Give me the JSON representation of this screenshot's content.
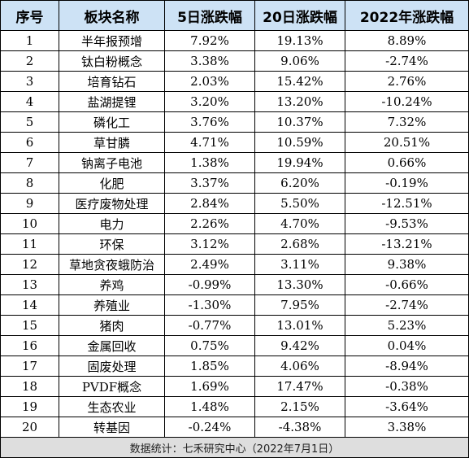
{
  "headers": [
    "序号",
    "板块名称",
    "5日涨跌幅",
    "20日涨跌幅",
    "2022年涨跌幅"
  ],
  "rows": [
    [
      "1",
      "半年报预增",
      "7.92%",
      "19.13%",
      "8.89%"
    ],
    [
      "2",
      "钛白粉概念",
      "3.38%",
      "9.06%",
      "-2.74%"
    ],
    [
      "3",
      "培育钻石",
      "2.03%",
      "15.42%",
      "2.76%"
    ],
    [
      "4",
      "盐湖提锂",
      "3.20%",
      "13.20%",
      "-10.24%"
    ],
    [
      "5",
      "磷化工",
      "3.76%",
      "10.37%",
      "7.32%"
    ],
    [
      "6",
      "草甘膦",
      "4.71%",
      "10.59%",
      "20.51%"
    ],
    [
      "7",
      "钠离子电池",
      "1.38%",
      "19.94%",
      "0.66%"
    ],
    [
      "8",
      "化肥",
      "3.37%",
      "6.20%",
      "-0.19%"
    ],
    [
      "9",
      "医疗废物处理",
      "2.84%",
      "5.50%",
      "-12.51%"
    ],
    [
      "10",
      "电力",
      "2.26%",
      "4.70%",
      "-9.53%"
    ],
    [
      "11",
      "环保",
      "3.12%",
      "2.68%",
      "-13.21%"
    ],
    [
      "12",
      "草地贪夜蛾防治",
      "2.49%",
      "3.11%",
      "9.38%"
    ],
    [
      "13",
      "养鸡",
      "-0.99%",
      "13.30%",
      "-0.66%"
    ],
    [
      "14",
      "养殖业",
      "-1.30%",
      "7.95%",
      "-2.74%"
    ],
    [
      "15",
      "猪肉",
      "-0.77%",
      "13.01%",
      "5.23%"
    ],
    [
      "16",
      "金属回收",
      "0.75%",
      "9.42%",
      "0.04%"
    ],
    [
      "17",
      "固废处理",
      "1.85%",
      "4.06%",
      "-8.94%"
    ],
    [
      "18",
      "PVDF概念",
      "1.69%",
      "17.47%",
      "-0.38%"
    ],
    [
      "19",
      "生态农业",
      "1.48%",
      "2.15%",
      "-3.64%"
    ],
    [
      "20",
      "转基因",
      "-0.24%",
      "-4.38%",
      "3.38%"
    ]
  ],
  "footer": "数据统计：七禾研究中心（2022年7月1日）",
  "colors": {
    "header_bg": "#cde2f5",
    "footer_bg": "#dedede",
    "border": "#000000"
  }
}
